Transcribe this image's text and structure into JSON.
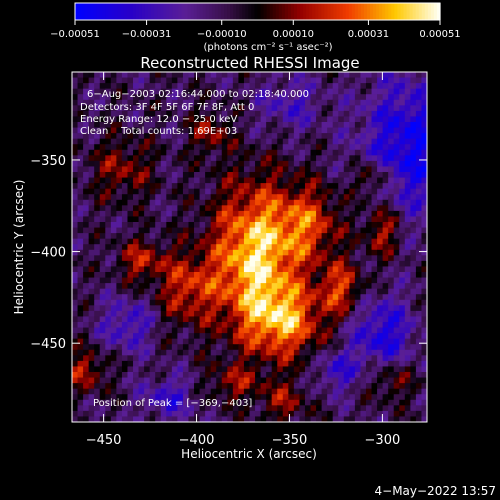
{
  "chart_data": {
    "type": "heatmap",
    "title": "Reconstructed RHESSI Image",
    "xlabel": "Heliocentric X (arcsec)",
    "ylabel": "Heliocentric Y (arcsec)",
    "xlim": [
      -467,
      -276
    ],
    "ylim": [
      -493,
      -302
    ],
    "x_ticks": [
      -450,
      -400,
      -350,
      -300
    ],
    "y_ticks": [
      -450,
      -400,
      -350
    ],
    "x_tick_labels": [
      "−450",
      "−400",
      "−350",
      "−300"
    ],
    "y_tick_labels": [
      "−450",
      "−400",
      "−350"
    ],
    "colorbar": {
      "range": [
        -0.00051,
        0.00051
      ],
      "ticks": [
        -0.00051,
        -0.00031,
        -0.0001,
        0.0001,
        0.00031,
        0.00051
      ],
      "tick_labels": [
        "−0.00051",
        "−0.00031",
        "−0.00010",
        "0.00010",
        "0.00031",
        "0.00051"
      ],
      "unit_label": "(photons cm⁻² s⁻¹ asec⁻²)"
    },
    "annotations": [
      "6−Aug−2003 02:16:44.000 to 02:18:40.000",
      "Detectors: 3F 4F 5F 6F 7F 8F, Att 0",
      "Energy Range: 12.0 − 25.0 keV",
      "Clean    Total counts: 1.69E+03"
    ],
    "peak_label": "Position of Peak = [−369,−403]",
    "peak": [
      -369,
      -403
    ],
    "sources": [
      {
        "x": -369,
        "y": -403,
        "amp": 0.00052,
        "sx": 16,
        "sy": 28
      },
      {
        "x": -352,
        "y": -438,
        "amp": 0.00038,
        "sx": 15,
        "sy": 14
      },
      {
        "x": -340,
        "y": -385,
        "amp": 0.0003,
        "sx": 13,
        "sy": 15
      },
      {
        "x": -405,
        "y": -420,
        "amp": 0.00028,
        "sx": 11,
        "sy": 14
      },
      {
        "x": -322,
        "y": -420,
        "amp": 0.0003,
        "sx": 8,
        "sy": 10
      },
      {
        "x": -430,
        "y": -405,
        "amp": 0.00025,
        "sx": 9,
        "sy": 8
      },
      {
        "x": -300,
        "y": -388,
        "amp": 0.00028,
        "sx": 7,
        "sy": 10
      },
      {
        "x": -305,
        "y": -360,
        "amp": 0.00025,
        "sx": 7,
        "sy": 7
      },
      {
        "x": -460,
        "y": -465,
        "amp": 0.00025,
        "sx": 8,
        "sy": 8
      },
      {
        "x": -440,
        "y": -355,
        "amp": 0.0002,
        "sx": 12,
        "sy": 12
      },
      {
        "x": -393,
        "y": -335,
        "amp": 0.00022,
        "sx": 7,
        "sy": 8
      },
      {
        "x": -353,
        "y": -482,
        "amp": 0.0002,
        "sx": 9,
        "sy": 8
      },
      {
        "x": -295,
        "y": -470,
        "amp": 0.0002,
        "sx": 8,
        "sy": 8
      },
      {
        "x": -380,
        "y": -472,
        "amp": 0.0002,
        "sx": 10,
        "sy": 7
      },
      {
        "x": -285,
        "y": -342,
        "amp": -0.00035,
        "sx": 18,
        "sy": 26
      },
      {
        "x": -300,
        "y": -445,
        "amp": -0.0003,
        "sx": 12,
        "sy": 14
      },
      {
        "x": -437,
        "y": -440,
        "amp": -0.00022,
        "sx": 10,
        "sy": 10
      },
      {
        "x": -415,
        "y": -480,
        "amp": -0.00022,
        "sx": 10,
        "sy": 8
      },
      {
        "x": -350,
        "y": -320,
        "amp": -0.00018,
        "sx": 12,
        "sy": 10
      },
      {
        "x": -325,
        "y": -465,
        "amp": -0.00022,
        "sx": 8,
        "sy": 8
      }
    ]
  },
  "footer": {
    "timestamp": "4−May−2022 13:57"
  }
}
